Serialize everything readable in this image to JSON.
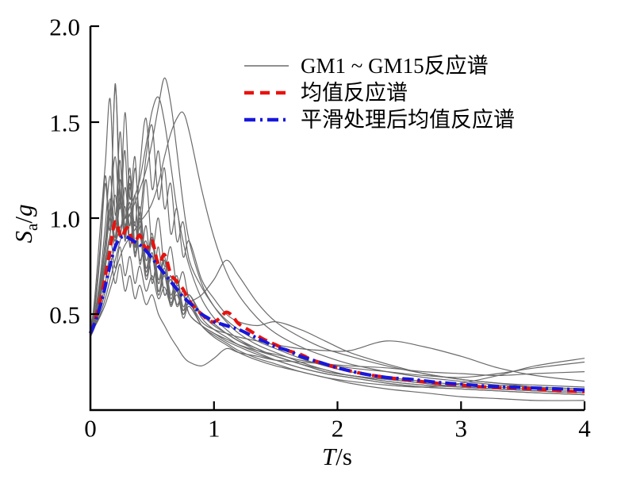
{
  "page": {
    "background": "#ffffff"
  },
  "legend": {
    "items": [
      {
        "label": "GM1 ~ GM15反应谱",
        "style": "solid",
        "color": "#6a6a6a"
      },
      {
        "label": "均值反应谱",
        "style": "dashed",
        "color": "#e8120e"
      },
      {
        "label": "平滑处理后均值反应谱",
        "style": "dashdot",
        "color": "#1717dd"
      }
    ]
  },
  "axes": {
    "x": {
      "symbol": "T",
      "sep": "/",
      "unit": "s",
      "range": [
        0,
        4
      ],
      "ticks": [
        {
          "value": 0,
          "label": "0"
        },
        {
          "value": 1,
          "label": "1"
        },
        {
          "value": 2,
          "label": "2"
        },
        {
          "value": 3,
          "label": "3"
        },
        {
          "value": 4,
          "label": "4"
        }
      ]
    },
    "y": {
      "symbol": "S",
      "subscript": "a",
      "sep": "/",
      "unit": "g",
      "range": [
        0,
        2
      ],
      "ticks": [
        {
          "value": 0.5,
          "label": "0.5"
        },
        {
          "value": 1.0,
          "label": "1.0"
        },
        {
          "value": 1.5,
          "label": "1.5"
        },
        {
          "value": 2.0,
          "label": "2.0"
        }
      ]
    }
  },
  "chart_data": {
    "type": "line",
    "title": "",
    "xlabel": "T/s",
    "ylabel": "Sa/g",
    "xlim": [
      0,
      4
    ],
    "ylim": [
      0,
      2
    ],
    "grid": false,
    "legend_position": "upper-center-right",
    "x": [
      0,
      0.04,
      0.08,
      0.12,
      0.16,
      0.2,
      0.24,
      0.28,
      0.32,
      0.36,
      0.4,
      0.45,
      0.5,
      0.55,
      0.6,
      0.65,
      0.7,
      0.75,
      0.8,
      0.9,
      1.0,
      1.1,
      1.2,
      1.35,
      1.5,
      1.7,
      1.9,
      2.1,
      2.4,
      2.7,
      3.0,
      3.3,
      3.6,
      4.0
    ],
    "series": [
      {
        "name": "GM1",
        "role": "gm",
        "color": "#6a6a6a",
        "width": 1.2,
        "dash": "",
        "y": [
          0.4,
          0.55,
          0.82,
          1.18,
          0.95,
          1.7,
          1.08,
          1.35,
          0.85,
          1.12,
          0.76,
          0.96,
          0.66,
          0.85,
          0.6,
          0.7,
          0.55,
          0.62,
          0.5,
          0.44,
          0.4,
          0.36,
          0.33,
          0.29,
          0.26,
          0.22,
          0.19,
          0.17,
          0.14,
          0.12,
          0.11,
          0.1,
          0.09,
          0.08
        ]
      },
      {
        "name": "GM2",
        "role": "gm",
        "color": "#6a6a6a",
        "width": 1.2,
        "dash": "",
        "y": [
          0.38,
          0.62,
          0.96,
          1.28,
          1.62,
          1.02,
          1.3,
          0.88,
          1.18,
          0.8,
          1.0,
          0.72,
          0.88,
          0.62,
          0.74,
          0.55,
          0.64,
          0.5,
          0.56,
          0.44,
          0.39,
          0.35,
          0.31,
          0.27,
          0.24,
          0.2,
          0.17,
          0.14,
          0.11,
          0.09,
          0.07,
          0.06,
          0.05,
          0.05
        ]
      },
      {
        "name": "GM3",
        "role": "gm",
        "color": "#6a6a6a",
        "width": 1.2,
        "dash": "",
        "y": [
          0.41,
          0.52,
          0.7,
          0.96,
          1.22,
          0.95,
          1.45,
          1.0,
          1.26,
          0.86,
          1.06,
          0.78,
          0.92,
          0.68,
          0.8,
          0.6,
          0.7,
          0.54,
          0.6,
          0.5,
          0.44,
          0.4,
          0.36,
          0.31,
          0.28,
          0.24,
          0.2,
          0.18,
          0.15,
          0.13,
          0.12,
          0.11,
          0.1,
          0.09
        ]
      },
      {
        "name": "GM4",
        "role": "gm",
        "color": "#6a6a6a",
        "width": 1.2,
        "dash": "",
        "y": [
          0.39,
          0.48,
          0.64,
          0.85,
          1.06,
          1.32,
          1.05,
          1.55,
          1.1,
          1.32,
          0.95,
          1.2,
          0.85,
          1.0,
          0.75,
          0.85,
          0.65,
          0.72,
          0.58,
          0.5,
          0.45,
          0.4,
          0.36,
          0.32,
          0.28,
          0.24,
          0.21,
          0.18,
          0.16,
          0.14,
          0.12,
          0.11,
          0.1,
          0.09
        ]
      },
      {
        "name": "GM5",
        "role": "gm",
        "color": "#6a6a6a",
        "width": 1.2,
        "dash": "",
        "y": [
          0.42,
          0.58,
          0.86,
          1.22,
          1.0,
          1.68,
          1.14,
          0.92,
          1.22,
          0.85,
          1.02,
          0.74,
          0.9,
          0.66,
          0.78,
          0.58,
          0.68,
          0.52,
          0.6,
          0.48,
          0.42,
          0.38,
          0.34,
          0.3,
          0.26,
          0.22,
          0.19,
          0.17,
          0.14,
          0.12,
          0.11,
          0.1,
          0.09,
          0.08
        ]
      },
      {
        "name": "GM6",
        "role": "gm",
        "color": "#6a6a6a",
        "width": 1.2,
        "dash": "",
        "y": [
          0.4,
          0.47,
          0.58,
          0.74,
          0.92,
          1.12,
          0.9,
          1.16,
          0.96,
          1.26,
          1.02,
          1.32,
          1.48,
          1.1,
          1.26,
          0.92,
          1.05,
          0.8,
          0.88,
          0.68,
          0.58,
          0.5,
          0.46,
          0.44,
          0.46,
          0.42,
          0.36,
          0.3,
          0.24,
          0.19,
          0.16,
          0.14,
          0.12,
          0.11
        ]
      },
      {
        "name": "GM7",
        "role": "gm",
        "color": "#6a6a6a",
        "width": 1.2,
        "dash": "",
        "y": [
          0.4,
          0.5,
          0.66,
          0.88,
          1.1,
          0.9,
          1.2,
          0.96,
          1.08,
          0.82,
          0.95,
          0.7,
          0.82,
          0.62,
          0.72,
          0.56,
          0.64,
          0.5,
          0.56,
          0.46,
          0.42,
          0.4,
          0.38,
          0.36,
          0.34,
          0.32,
          0.31,
          0.31,
          0.36,
          0.33,
          0.28,
          0.22,
          0.18,
          0.15
        ]
      },
      {
        "name": "GM8",
        "role": "gm",
        "color": "#6a6a6a",
        "width": 1.2,
        "dash": "",
        "y": [
          0.38,
          0.46,
          0.58,
          0.76,
          0.92,
          1.12,
          0.92,
          1.06,
          0.86,
          0.98,
          0.78,
          0.88,
          0.68,
          0.78,
          0.6,
          0.68,
          0.54,
          0.6,
          0.5,
          0.44,
          0.4,
          0.37,
          0.34,
          0.31,
          0.29,
          0.26,
          0.24,
          0.22,
          0.2,
          0.18,
          0.17,
          0.19,
          0.22,
          0.25
        ]
      },
      {
        "name": "GM9",
        "role": "gm",
        "color": "#6a6a6a",
        "width": 1.2,
        "dash": "",
        "y": [
          0.41,
          0.49,
          0.62,
          0.8,
          1.0,
          0.85,
          1.08,
          0.9,
          1.16,
          0.96,
          1.26,
          1.52,
          1.15,
          1.35,
          1.05,
          1.18,
          0.88,
          0.98,
          0.78,
          0.64,
          0.54,
          0.47,
          0.42,
          0.36,
          0.32,
          0.27,
          0.23,
          0.2,
          0.17,
          0.15,
          0.13,
          0.12,
          0.11,
          0.1
        ]
      },
      {
        "name": "GM10",
        "role": "gm",
        "color": "#6a6a6a",
        "width": 1.2,
        "dash": "",
        "y": [
          0.4,
          0.51,
          0.67,
          0.86,
          1.05,
          0.88,
          1.12,
          0.92,
          1.02,
          0.8,
          0.92,
          0.68,
          0.8,
          0.6,
          0.7,
          0.54,
          0.62,
          0.48,
          0.54,
          0.44,
          0.38,
          0.34,
          0.3,
          0.26,
          0.23,
          0.2,
          0.17,
          0.15,
          0.13,
          0.12,
          0.14,
          0.18,
          0.23,
          0.27
        ]
      },
      {
        "name": "GM11",
        "role": "gm",
        "color": "#6a6a6a",
        "width": 1.2,
        "dash": "",
        "y": [
          0.4,
          0.45,
          0.52,
          0.62,
          0.74,
          0.86,
          0.95,
          1.0,
          1.06,
          1.12,
          1.2,
          1.38,
          1.56,
          1.63,
          1.5,
          1.28,
          1.05,
          0.88,
          0.75,
          0.58,
          0.48,
          0.42,
          0.37,
          0.32,
          0.28,
          0.24,
          0.2,
          0.18,
          0.15,
          0.13,
          0.12,
          0.11,
          0.1,
          0.09
        ]
      },
      {
        "name": "GM12",
        "role": "gm",
        "color": "#6a6a6a",
        "width": 1.2,
        "dash": "",
        "y": [
          0.39,
          0.44,
          0.5,
          0.58,
          0.68,
          0.78,
          0.88,
          0.96,
          1.02,
          1.08,
          1.15,
          1.25,
          1.4,
          1.58,
          1.73,
          1.6,
          1.35,
          1.08,
          0.88,
          0.66,
          0.54,
          0.46,
          0.4,
          0.34,
          0.3,
          0.25,
          0.21,
          0.18,
          0.16,
          0.14,
          0.12,
          0.11,
          0.1,
          0.09
        ]
      },
      {
        "name": "GM13",
        "role": "gm",
        "color": "#6a6a6a",
        "width": 1.2,
        "dash": "",
        "y": [
          0.4,
          0.44,
          0.49,
          0.55,
          0.63,
          0.72,
          0.8,
          0.86,
          0.9,
          0.94,
          0.98,
          1.02,
          1.08,
          1.18,
          1.32,
          1.44,
          1.52,
          1.55,
          1.45,
          1.15,
          0.9,
          0.72,
          0.6,
          0.48,
          0.4,
          0.33,
          0.28,
          0.24,
          0.2,
          0.17,
          0.15,
          0.13,
          0.12,
          0.11
        ]
      },
      {
        "name": "GM14",
        "role": "gm",
        "color": "#6a6a6a",
        "width": 1.2,
        "dash": "",
        "y": [
          0.4,
          0.48,
          0.6,
          0.76,
          0.9,
          0.74,
          0.85,
          0.7,
          0.8,
          0.66,
          0.75,
          0.62,
          0.7,
          0.58,
          0.64,
          0.55,
          0.6,
          0.52,
          0.56,
          0.6,
          0.68,
          0.78,
          0.7,
          0.56,
          0.46,
          0.38,
          0.32,
          0.28,
          0.23,
          0.19,
          0.16,
          0.14,
          0.13,
          0.12
        ]
      },
      {
        "name": "GM15",
        "role": "gm",
        "color": "#6a6a6a",
        "width": 1.2,
        "dash": "",
        "y": [
          0.38,
          0.44,
          0.54,
          0.66,
          0.8,
          0.66,
          0.76,
          0.62,
          0.7,
          0.58,
          0.65,
          0.55,
          0.6,
          0.5,
          0.44,
          0.38,
          0.33,
          0.28,
          0.25,
          0.23,
          0.27,
          0.32,
          0.3,
          0.28,
          0.26,
          0.25,
          0.24,
          0.23,
          0.22,
          0.2,
          0.19,
          0.18,
          0.19,
          0.2
        ]
      },
      {
        "name": "均值反应谱",
        "role": "mean",
        "color": "#e8120e",
        "width": 4.2,
        "dash": "12 7",
        "x": [
          0,
          0.05,
          0.1,
          0.15,
          0.2,
          0.25,
          0.3,
          0.35,
          0.4,
          0.45,
          0.5,
          0.55,
          0.6,
          0.65,
          0.7,
          0.75,
          0.8,
          0.85,
          0.9,
          0.95,
          1.0,
          1.05,
          1.1,
          1.15,
          1.2,
          1.3,
          1.4,
          1.5,
          1.6,
          1.7,
          1.8,
          1.9,
          2.0,
          2.2,
          2.4,
          2.6,
          2.8,
          3.0,
          3.2,
          3.4,
          3.6,
          3.8,
          4.0
        ],
        "y": [
          0.4,
          0.5,
          0.63,
          0.8,
          0.98,
          0.9,
          0.95,
          0.87,
          0.91,
          0.84,
          0.88,
          0.76,
          0.81,
          0.71,
          0.67,
          0.63,
          0.57,
          0.53,
          0.5,
          0.47,
          0.46,
          0.48,
          0.51,
          0.49,
          0.45,
          0.41,
          0.37,
          0.34,
          0.31,
          0.29,
          0.26,
          0.24,
          0.22,
          0.19,
          0.17,
          0.155,
          0.14,
          0.13,
          0.12,
          0.115,
          0.11,
          0.1,
          0.095
        ]
      },
      {
        "name": "平滑处理后均值反应谱",
        "role": "smoothed",
        "color": "#1717dd",
        "width": 4.2,
        "dash": "14 5 3 5",
        "x": [
          0,
          0.05,
          0.1,
          0.15,
          0.2,
          0.25,
          0.3,
          0.35,
          0.4,
          0.45,
          0.5,
          0.55,
          0.6,
          0.65,
          0.7,
          0.75,
          0.8,
          0.85,
          0.9,
          0.95,
          1.0,
          1.05,
          1.1,
          1.15,
          1.2,
          1.3,
          1.4,
          1.5,
          1.6,
          1.7,
          1.8,
          1.9,
          2.0,
          2.2,
          2.4,
          2.6,
          2.8,
          3.0,
          3.2,
          3.4,
          3.6,
          3.8,
          4.0
        ],
        "y": [
          0.4,
          0.48,
          0.59,
          0.73,
          0.85,
          0.9,
          0.9,
          0.88,
          0.86,
          0.83,
          0.79,
          0.75,
          0.71,
          0.67,
          0.63,
          0.59,
          0.56,
          0.53,
          0.5,
          0.48,
          0.46,
          0.45,
          0.44,
          0.43,
          0.42,
          0.39,
          0.36,
          0.33,
          0.31,
          0.28,
          0.26,
          0.24,
          0.22,
          0.19,
          0.17,
          0.16,
          0.145,
          0.135,
          0.125,
          0.12,
          0.115,
          0.11,
          0.105
        ]
      }
    ]
  }
}
